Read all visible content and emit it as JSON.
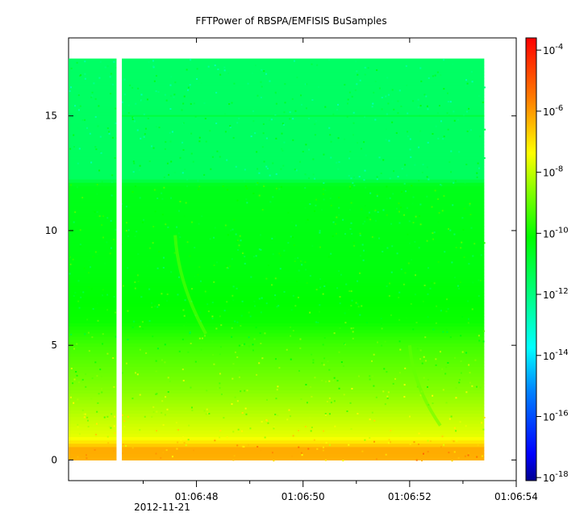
{
  "chart_data": {
    "type": "heatmap",
    "title": "FFTPower of RBSPA/EMFISIS  BuSamples",
    "xlabel": "",
    "ylabel": "",
    "zlabel": "",
    "x_ticks": [
      "01:06:48",
      "01:06:50",
      "01:06:52",
      "01:06:54"
    ],
    "x_date_label": "2012-11-21",
    "x_range": [
      "01:06:45.6",
      "01:06:54.0"
    ],
    "x_minor_ticks": [
      "01:06:47",
      "01:06:49",
      "01:06:51",
      "01:06:53"
    ],
    "y_ticks": [
      0,
      5,
      10,
      15
    ],
    "ylim": [
      -0.9,
      18.4
    ],
    "y_data_range": [
      0,
      17.5
    ],
    "x_data_range": [
      "01:06:45.6",
      "01:06:53.4"
    ],
    "gap": [
      "01:06:46.5",
      "01:06:46.6"
    ],
    "colorbar": {
      "scale": "log",
      "ticks": [
        "10-4",
        "10-6",
        "10-8",
        "10-10",
        "10-12",
        "10-14",
        "10-16",
        "10-18"
      ],
      "exponents": [
        -4,
        -6,
        -8,
        -10,
        -12,
        -14,
        -16,
        -18
      ],
      "range_exp": [
        -18.1,
        -3.6
      ],
      "colors": [
        "#00008f",
        "#0000ff",
        "#0080ff",
        "#00ffff",
        "#00ff80",
        "#00ff00",
        "#80ff00",
        "#ffff00",
        "#ff8000",
        "#ff0000"
      ]
    },
    "power_profile": [
      {
        "freq": 0.0,
        "exp": -6.3
      },
      {
        "freq": 0.5,
        "exp": -6.2
      },
      {
        "freq": 1.0,
        "exp": -7.6
      },
      {
        "freq": 2.0,
        "exp": -8.1
      },
      {
        "freq": 3.0,
        "exp": -8.6
      },
      {
        "freq": 4.0,
        "exp": -9.0
      },
      {
        "freq": 5.0,
        "exp": -9.4
      },
      {
        "freq": 6.0,
        "exp": -10.0
      },
      {
        "freq": 8.0,
        "exp": -10.3
      },
      {
        "freq": 12.0,
        "exp": -10.5
      },
      {
        "freq": 12.3,
        "exp": -11.5
      },
      {
        "freq": 17.5,
        "exp": -11.6
      }
    ],
    "features": [
      {
        "name": "line",
        "freq": 15.0,
        "exp": -10.9
      },
      {
        "name": "whistler-1",
        "time": "01:06:47.6",
        "freq_range": [
          5.5,
          9.8
        ],
        "exp": -9.0
      },
      {
        "name": "whistler-2",
        "time": "01:06:52.0",
        "freq_range": [
          1.5,
          5.0
        ],
        "exp": -9.0
      }
    ]
  }
}
